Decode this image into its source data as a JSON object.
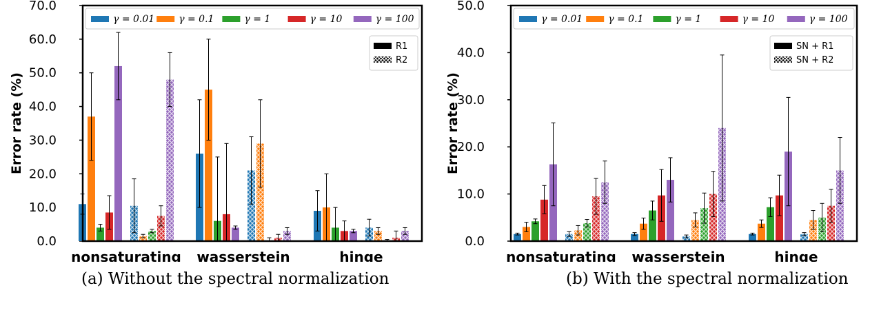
{
  "chart_data": [
    {
      "type": "bar",
      "title": "",
      "caption": "(a) Without the spectral normalization",
      "xlabel": "",
      "ylabel": "Error rate (%)",
      "ylim": [
        0,
        70
      ],
      "yticks": [
        0,
        10,
        20,
        30,
        40,
        50,
        60,
        70
      ],
      "ytick_labels": [
        "0.0",
        "10.0",
        "20.0",
        "30.0",
        "40.0",
        "50.0",
        "60.0",
        "70.0"
      ],
      "categories": [
        "nonsaturating",
        "wasserstein",
        "hinge"
      ],
      "gamma_labels": [
        "γ = 0.01",
        "γ = 0.1",
        "γ = 1",
        "γ = 10",
        "γ = 100"
      ],
      "colors": [
        "#1f77b4",
        "#ff7f0e",
        "#2ca02c",
        "#d62728",
        "#9467bd"
      ],
      "reg_labels": [
        "R1",
        "R2"
      ],
      "legend_placement": "top (gammas), right (regularizers)",
      "grid": false,
      "series": [
        {
          "name": "γ = 0.01 R1",
          "values": [
            11,
            26,
            9
          ],
          "err_low": [
            3,
            16,
            6
          ],
          "err_high": [
            3,
            16,
            6
          ]
        },
        {
          "name": "γ = 0.1 R1",
          "values": [
            37,
            45,
            10
          ],
          "err_low": [
            13,
            15,
            10
          ],
          "err_high": [
            13,
            15,
            10
          ]
        },
        {
          "name": "γ = 1 R1",
          "values": [
            4,
            6,
            4
          ],
          "err_low": [
            1,
            19,
            6
          ],
          "err_high": [
            1,
            19,
            6
          ]
        },
        {
          "name": "γ = 10 R1",
          "values": [
            8.5,
            8,
            3
          ],
          "err_low": [
            5,
            21,
            3
          ],
          "err_high": [
            5,
            21,
            3
          ]
        },
        {
          "name": "γ = 100 R1",
          "values": [
            52,
            4,
            3
          ],
          "err_low": [
            10,
            0.5,
            0.5
          ],
          "err_high": [
            10,
            0.5,
            0.5
          ]
        },
        {
          "name": "γ = 0.01 R2",
          "values": [
            10.5,
            21,
            4
          ],
          "err_low": [
            8,
            10,
            2.5
          ],
          "err_high": [
            8,
            10,
            2.5
          ]
        },
        {
          "name": "γ = 0.1 R2",
          "values": [
            1.5,
            29,
            3
          ],
          "err_low": [
            0.5,
            13,
            1
          ],
          "err_high": [
            0.5,
            13,
            1
          ]
        },
        {
          "name": "γ = 1 R2",
          "values": [
            3,
            0,
            0
          ],
          "err_low": [
            0.5,
            1,
            0.5
          ],
          "err_high": [
            0.5,
            1,
            0.5
          ]
        },
        {
          "name": "γ = 10 R2",
          "values": [
            7.5,
            1,
            1
          ],
          "err_low": [
            3,
            1,
            2
          ],
          "err_high": [
            3,
            1,
            2
          ]
        },
        {
          "name": "γ = 100 R2",
          "values": [
            48,
            3,
            3
          ],
          "err_low": [
            8,
            1,
            1
          ],
          "err_high": [
            8,
            1,
            1
          ]
        }
      ]
    },
    {
      "type": "bar",
      "title": "",
      "caption": "(b) With the spectral normalization",
      "xlabel": "",
      "ylabel": "Error rate (%)",
      "ylim": [
        0,
        50
      ],
      "yticks": [
        0,
        10,
        20,
        30,
        40,
        50
      ],
      "ytick_labels": [
        "0.0",
        "10.0",
        "20.0",
        "30.0",
        "40.0",
        "50.0"
      ],
      "categories": [
        "nonsaturating",
        "wasserstein",
        "hinge"
      ],
      "gamma_labels": [
        "γ = 0.01",
        "γ = 0.1",
        "γ = 1",
        "γ = 10",
        "γ = 100"
      ],
      "colors": [
        "#1f77b4",
        "#ff7f0e",
        "#2ca02c",
        "#d62728",
        "#9467bd"
      ],
      "reg_labels": [
        "SN + R1",
        "SN + R2"
      ],
      "legend_placement": "top (gammas), right (regularizers)",
      "grid": false,
      "series": [
        {
          "name": "γ = 0.01 SN + R1",
          "values": [
            1.5,
            1.5,
            1.5
          ],
          "err_low": [
            0.2,
            0.3,
            0.2
          ],
          "err_high": [
            0.2,
            0.3,
            0.2
          ]
        },
        {
          "name": "γ = 0.1 SN + R1",
          "values": [
            3,
            3.7,
            3.7
          ],
          "err_low": [
            1,
            1.2,
            0.8
          ],
          "err_high": [
            1,
            1.2,
            0.8
          ]
        },
        {
          "name": "γ = 1 SN + R1",
          "values": [
            4.2,
            6.5,
            7.2
          ],
          "err_low": [
            0.5,
            2,
            2
          ],
          "err_high": [
            0.5,
            2,
            2
          ]
        },
        {
          "name": "γ = 10 SN + R1",
          "values": [
            8.8,
            9.7,
            9.7
          ],
          "err_low": [
            3,
            5.5,
            4.3
          ],
          "err_high": [
            3,
            5.5,
            4.3
          ]
        },
        {
          "name": "γ = 100 SN + R1",
          "values": [
            16.3,
            13,
            19
          ],
          "err_low": [
            8.8,
            4.7,
            11.5
          ],
          "err_high": [
            8.8,
            4.7,
            11.5
          ]
        },
        {
          "name": "γ = 0.01 SN + R2",
          "values": [
            1.5,
            1,
            1.5
          ],
          "err_low": [
            0.5,
            0.3,
            0.3
          ],
          "err_high": [
            0.5,
            0.3,
            0.3
          ]
        },
        {
          "name": "γ = 0.1 SN + R2",
          "values": [
            2.3,
            4.5,
            4.5
          ],
          "err_low": [
            1,
            1.5,
            2
          ],
          "err_high": [
            1,
            1.5,
            2
          ]
        },
        {
          "name": "γ = 1 SN + R2",
          "values": [
            3.8,
            7,
            5
          ],
          "err_low": [
            0.8,
            3.2,
            3
          ],
          "err_high": [
            0.8,
            3.2,
            3
          ]
        },
        {
          "name": "γ = 10 SN + R2",
          "values": [
            9.5,
            10,
            7.5
          ],
          "err_low": [
            3.8,
            4.8,
            3.5
          ],
          "err_high": [
            3.8,
            4.8,
            3.5
          ]
        },
        {
          "name": "γ = 100 SN + R2",
          "values": [
            12.5,
            24,
            15
          ],
          "err_low": [
            4.5,
            15.5,
            7
          ],
          "err_high": [
            4.5,
            15.5,
            7
          ]
        }
      ]
    }
  ]
}
